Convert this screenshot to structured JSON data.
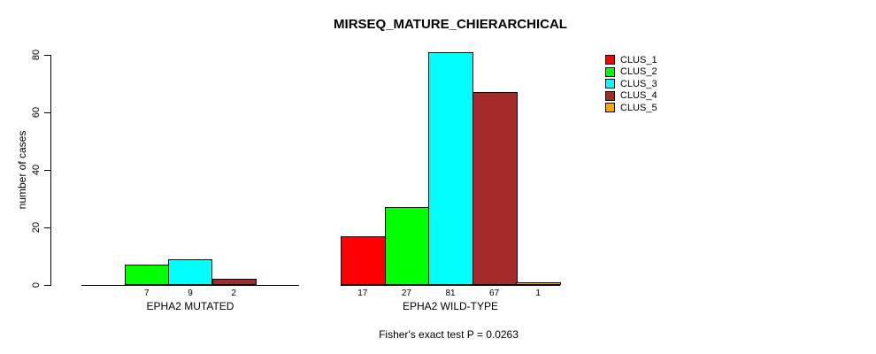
{
  "chart_data": {
    "type": "bar",
    "title": "MIRSEQ_MATURE_CHIERARCHICAL",
    "ylabel": "number of cases",
    "xlabel": "",
    "footnote": "Fisher's exact test P = 0.0263",
    "yticks": [
      0,
      20,
      40,
      60,
      80
    ],
    "ylim": [
      0,
      81
    ],
    "grid": false,
    "legend_position": "top-right",
    "categories": [
      "EPHA2 MUTATED",
      "EPHA2 WILD-TYPE"
    ],
    "series": [
      {
        "name": "CLUS_1",
        "color": "#FF0000",
        "values": [
          0,
          17
        ]
      },
      {
        "name": "CLUS_2",
        "color": "#00FF00",
        "values": [
          7,
          27
        ]
      },
      {
        "name": "CLUS_3",
        "color": "#00FFFF",
        "values": [
          9,
          81
        ]
      },
      {
        "name": "CLUS_4",
        "color": "#A52A2A",
        "values": [
          2,
          67
        ]
      },
      {
        "name": "CLUS_5",
        "color": "#FFA500",
        "values": [
          0,
          1
        ]
      }
    ],
    "bar_value_labels": {
      "EPHA2 MUTATED": [
        "7",
        "9",
        "2"
      ],
      "EPHA2 WILD-TYPE": [
        "17",
        "27",
        "81",
        "67",
        "1"
      ]
    },
    "zero_value_bars_hidden": true,
    "colors": {
      "axis": "#000000",
      "text": "#000000",
      "background": "#FFFFFF"
    }
  }
}
